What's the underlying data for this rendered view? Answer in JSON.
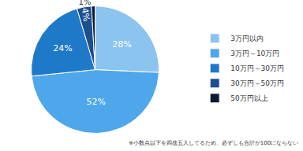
{
  "chart_data": {
    "type": "pie",
    "categories": [
      "3万円以内",
      "3万円～10万円",
      "10万円～30万円",
      "30万円～50万円",
      "50万円以上"
    ],
    "values": [
      28,
      52,
      24,
      4,
      1
    ],
    "value_labels": [
      "28%",
      "52%",
      "24%",
      "4%",
      "1%"
    ],
    "colors": [
      "#8cc4f0",
      "#4ea7ea",
      "#1f79c9",
      "#1b4f8d",
      "#0d1a33"
    ],
    "data_labels": true,
    "legend": "right",
    "annotations": [
      "※小数点以下を四捨五入してるため、必ずしも合計が100にならない"
    ]
  }
}
